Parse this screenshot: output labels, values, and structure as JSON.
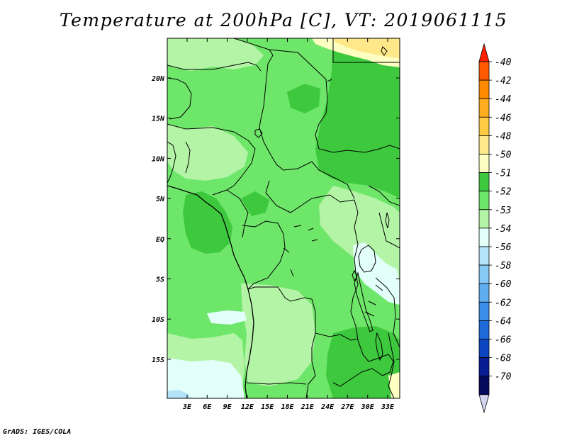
{
  "title": "Temperature at 200hPa [C], VT: 2019061115",
  "credit": "GrADS: IGES/COLA",
  "map": {
    "variable": "Temperature",
    "level": "200hPa",
    "units": "C",
    "valid_time": "2019061115",
    "lat_labels": [
      "20N",
      "15N",
      "10N",
      "5N",
      "EQ",
      "5S",
      "10S",
      "15S"
    ],
    "lon_labels": [
      "3E",
      "6E",
      "9E",
      "12E",
      "15E",
      "18E",
      "21E",
      "24E",
      "27E",
      "30E",
      "33E"
    ]
  },
  "colorbar": {
    "labels": [
      "-40",
      "-42",
      "-44",
      "-46",
      "-48",
      "-50",
      "-51",
      "-52",
      "-53",
      "-54",
      "-56",
      "-58",
      "-60",
      "-62",
      "-64",
      "-66",
      "-68",
      "-70"
    ],
    "colors": [
      "#ff2000",
      "#ff5a00",
      "#ff8a00",
      "#ffad20",
      "#ffcc44",
      "#ffe88a",
      "#fdffc2",
      "#3ec83e",
      "#6ee66a",
      "#b4f4a6",
      "#e2fffa",
      "#b2e3fa",
      "#86c9f5",
      "#5eaef0",
      "#3c8fe8",
      "#1f6bdc",
      "#0c46c0",
      "#081c94",
      "#060a5c",
      "#d4d4f2"
    ]
  }
}
